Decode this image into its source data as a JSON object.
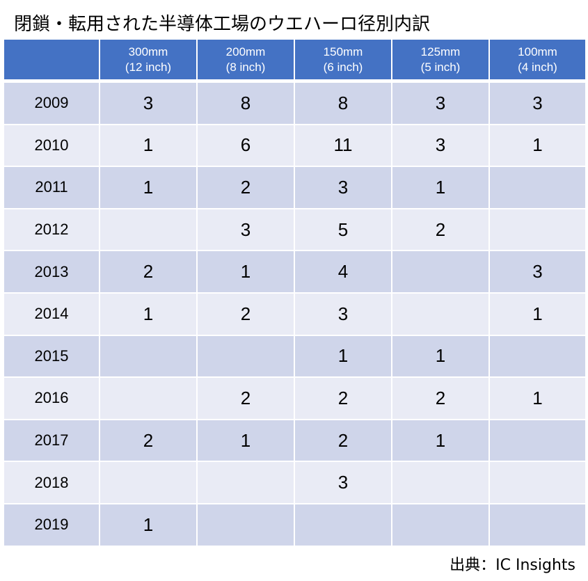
{
  "title": "閉鎖・転用された半導体工場のウエハーロ径別内訳",
  "source": "出典：IC Insights",
  "colors": {
    "header": "#4472C4",
    "row_odd": "#CFD5EA",
    "row_even": "#E9EBF5"
  },
  "chart_data": {
    "type": "table",
    "columns": [
      {
        "line1": "300mm",
        "line2": "(12 inch)"
      },
      {
        "line1": "200mm",
        "line2": "(8 inch)"
      },
      {
        "line1": "150mm",
        "line2": "(6 inch)"
      },
      {
        "line1": "125mm",
        "line2": "(5 inch)"
      },
      {
        "line1": "100mm",
        "line2": "(4 inch)"
      }
    ],
    "rows": [
      {
        "year": "2009",
        "values": [
          "3",
          "8",
          "8",
          "3",
          "3"
        ]
      },
      {
        "year": "2010",
        "values": [
          "1",
          "6",
          "11",
          "3",
          "1"
        ]
      },
      {
        "year": "2011",
        "values": [
          "1",
          "2",
          "3",
          "1",
          ""
        ]
      },
      {
        "year": "2012",
        "values": [
          "",
          "3",
          "5",
          "2",
          ""
        ]
      },
      {
        "year": "2013",
        "values": [
          "2",
          "1",
          "4",
          "",
          "3"
        ]
      },
      {
        "year": "2014",
        "values": [
          "1",
          "2",
          "3",
          "",
          "1"
        ]
      },
      {
        "year": "2015",
        "values": [
          "",
          "",
          "1",
          "1",
          ""
        ]
      },
      {
        "year": "2016",
        "values": [
          "",
          "2",
          "2",
          "2",
          "1"
        ]
      },
      {
        "year": "2017",
        "values": [
          "2",
          "1",
          "2",
          "1",
          ""
        ]
      },
      {
        "year": "2018",
        "values": [
          "",
          "",
          "3",
          "",
          ""
        ]
      },
      {
        "year": "2019",
        "values": [
          "1",
          "",
          "",
          "",
          ""
        ]
      }
    ]
  }
}
